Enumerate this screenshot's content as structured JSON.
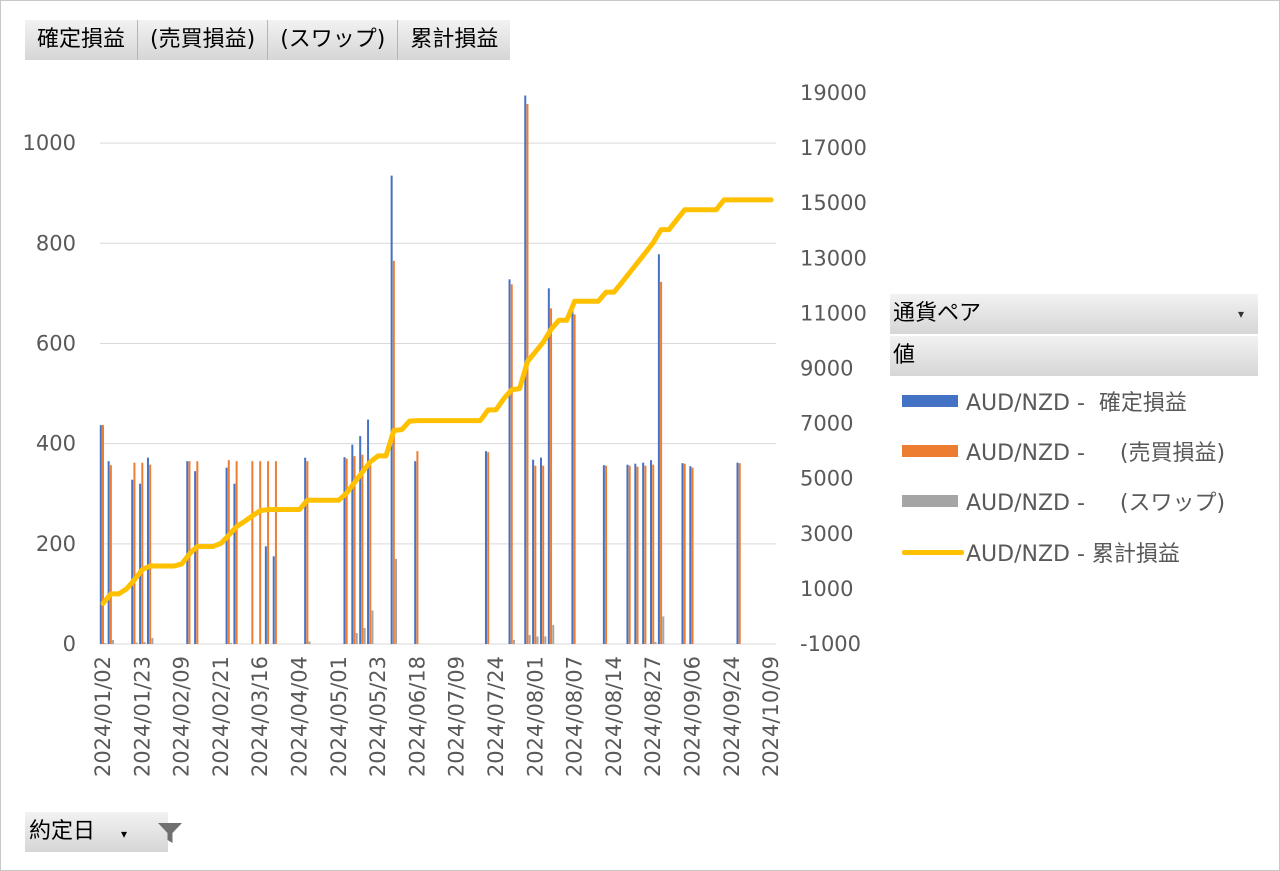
{
  "field_buttons": [
    "確定損益",
    "(売買損益)",
    "(スワップ)",
    "累計損益"
  ],
  "panel": {
    "header1": "通貨ペア",
    "header2": "値"
  },
  "filter": {
    "label": "約定日"
  },
  "legend": [
    {
      "label": "AUD/NZD -  確定損益",
      "color": "#4472c4",
      "kind": "bar"
    },
    {
      "label": "AUD/NZD -     (売買損益)",
      "color": "#ed7d31",
      "kind": "bar"
    },
    {
      "label": "AUD/NZD -     (スワップ)",
      "color": "#a5a5a5",
      "kind": "bar"
    },
    {
      "label": "AUD/NZD - 累計損益",
      "color": "#ffc000",
      "kind": "line"
    }
  ],
  "chart_data": {
    "type": "bar",
    "x_tick_labels": [
      "2024/01/02",
      "2024/01/23",
      "2024/02/09",
      "2024/02/21",
      "2024/03/16",
      "2024/04/04",
      "2024/05/01",
      "2024/05/23",
      "2024/06/18",
      "2024/07/09",
      "2024/07/24",
      "2024/08/01",
      "2024/08/07",
      "2024/08/14",
      "2024/08/27",
      "2024/09/06",
      "2024/09/24",
      "2024/10/09"
    ],
    "x_tick_index": [
      0,
      5,
      10,
      15,
      20,
      25,
      30,
      35,
      40,
      45,
      50,
      55,
      60,
      65,
      70,
      75,
      80,
      85
    ],
    "n_categories": 87,
    "y_left": {
      "min": 0,
      "max": 1100,
      "ticks": [
        0,
        200,
        400,
        600,
        800,
        1000
      ]
    },
    "y_right": {
      "min": -1000,
      "max": 19000,
      "ticks": [
        -1000,
        1000,
        3000,
        5000,
        7000,
        9000,
        11000,
        13000,
        15000,
        17000,
        19000
      ]
    },
    "gridlines": true,
    "legend_position": "right",
    "bar_series": [
      {
        "color": "#4472c4",
        "points": [
          [
            0,
            437
          ],
          [
            1,
            365
          ],
          [
            4,
            328
          ],
          [
            5,
            320
          ],
          [
            6,
            372
          ],
          [
            11,
            365
          ],
          [
            12,
            345
          ],
          [
            16,
            352
          ],
          [
            17,
            320
          ],
          [
            21,
            195
          ],
          [
            22,
            175
          ],
          [
            26,
            372
          ],
          [
            31,
            373
          ],
          [
            32,
            398
          ],
          [
            33,
            415
          ],
          [
            34,
            448
          ],
          [
            37,
            935
          ],
          [
            40,
            365
          ],
          [
            49,
            385
          ],
          [
            52,
            728
          ],
          [
            54,
            1095
          ],
          [
            55,
            368
          ],
          [
            56,
            372
          ],
          [
            57,
            710
          ],
          [
            60,
            678
          ],
          [
            64,
            357
          ],
          [
            67,
            358
          ],
          [
            68,
            360
          ],
          [
            69,
            362
          ],
          [
            70,
            367
          ],
          [
            71,
            778
          ],
          [
            74,
            361
          ],
          [
            75,
            355
          ],
          [
            81,
            362
          ]
        ]
      },
      {
        "color": "#ed7d31",
        "points": [
          [
            0,
            437
          ],
          [
            1,
            357
          ],
          [
            4,
            362
          ],
          [
            5,
            362
          ],
          [
            6,
            358
          ],
          [
            11,
            365
          ],
          [
            12,
            365
          ],
          [
            16,
            367
          ],
          [
            17,
            365
          ],
          [
            19,
            365
          ],
          [
            20,
            365
          ],
          [
            21,
            365
          ],
          [
            22,
            365
          ],
          [
            26,
            365
          ],
          [
            31,
            370
          ],
          [
            32,
            375
          ],
          [
            33,
            378
          ],
          [
            34,
            360
          ],
          [
            37,
            765
          ],
          [
            40,
            385
          ],
          [
            49,
            383
          ],
          [
            52,
            718
          ],
          [
            54,
            1078
          ],
          [
            55,
            356
          ],
          [
            56,
            356
          ],
          [
            57,
            670
          ],
          [
            60,
            658
          ],
          [
            64,
            356
          ],
          [
            67,
            356
          ],
          [
            68,
            354
          ],
          [
            69,
            356
          ],
          [
            70,
            358
          ],
          [
            71,
            723
          ],
          [
            74,
            360
          ],
          [
            75,
            352
          ],
          [
            81,
            361
          ]
        ]
      },
      {
        "color": "#a5a5a5",
        "points": [
          [
            0,
            2
          ],
          [
            1,
            8
          ],
          [
            4,
            3
          ],
          [
            5,
            4
          ],
          [
            6,
            12
          ],
          [
            16,
            2
          ],
          [
            26,
            5
          ],
          [
            32,
            22
          ],
          [
            33,
            32
          ],
          [
            34,
            67
          ],
          [
            37,
            170
          ],
          [
            52,
            8
          ],
          [
            54,
            18
          ],
          [
            55,
            15
          ],
          [
            56,
            15
          ],
          [
            57,
            38
          ],
          [
            70,
            4
          ],
          [
            71,
            55
          ]
        ]
      }
    ],
    "line_series": {
      "color": "#ffc000",
      "x_index": [
        0,
        1,
        2,
        3,
        4,
        5,
        6,
        7,
        8,
        9,
        10,
        11,
        12,
        13,
        14,
        15,
        16,
        17,
        18,
        19,
        20,
        21,
        22,
        23,
        24,
        25,
        26,
        27,
        28,
        29,
        30,
        31,
        32,
        33,
        34,
        35,
        36,
        37,
        38,
        39,
        40,
        41,
        42,
        43,
        44,
        45,
        46,
        47,
        48,
        49,
        50,
        51,
        52,
        53,
        54,
        55,
        56,
        57,
        58,
        59,
        60,
        61,
        62,
        63,
        64,
        65,
        66,
        67,
        68,
        69,
        70,
        71,
        72,
        73,
        74,
        75,
        76,
        77,
        78,
        79,
        80,
        81,
        82,
        83,
        84,
        85
      ],
      "values": [
        470,
        820,
        820,
        1000,
        1330,
        1700,
        1830,
        1830,
        1830,
        1830,
        1900,
        2270,
        2540,
        2540,
        2540,
        2650,
        2950,
        3260,
        3450,
        3650,
        3840,
        3880,
        3880,
        3880,
        3880,
        3880,
        4220,
        4220,
        4220,
        4220,
        4220,
        4480,
        4860,
        5240,
        5610,
        5830,
        5830,
        6750,
        6780,
        7090,
        7110,
        7110,
        7110,
        7110,
        7110,
        7110,
        7110,
        7110,
        7110,
        7500,
        7500,
        7910,
        8230,
        8270,
        9250,
        9600,
        9950,
        10420,
        10750,
        10750,
        11440,
        11440,
        11440,
        11440,
        11770,
        11770,
        12120,
        12480,
        12840,
        13200,
        13570,
        14040,
        14040,
        14400,
        14760,
        14760,
        14760,
        14760,
        14760,
        15120,
        15120,
        15120,
        15120,
        15120,
        15120,
        15120
      ]
    }
  }
}
